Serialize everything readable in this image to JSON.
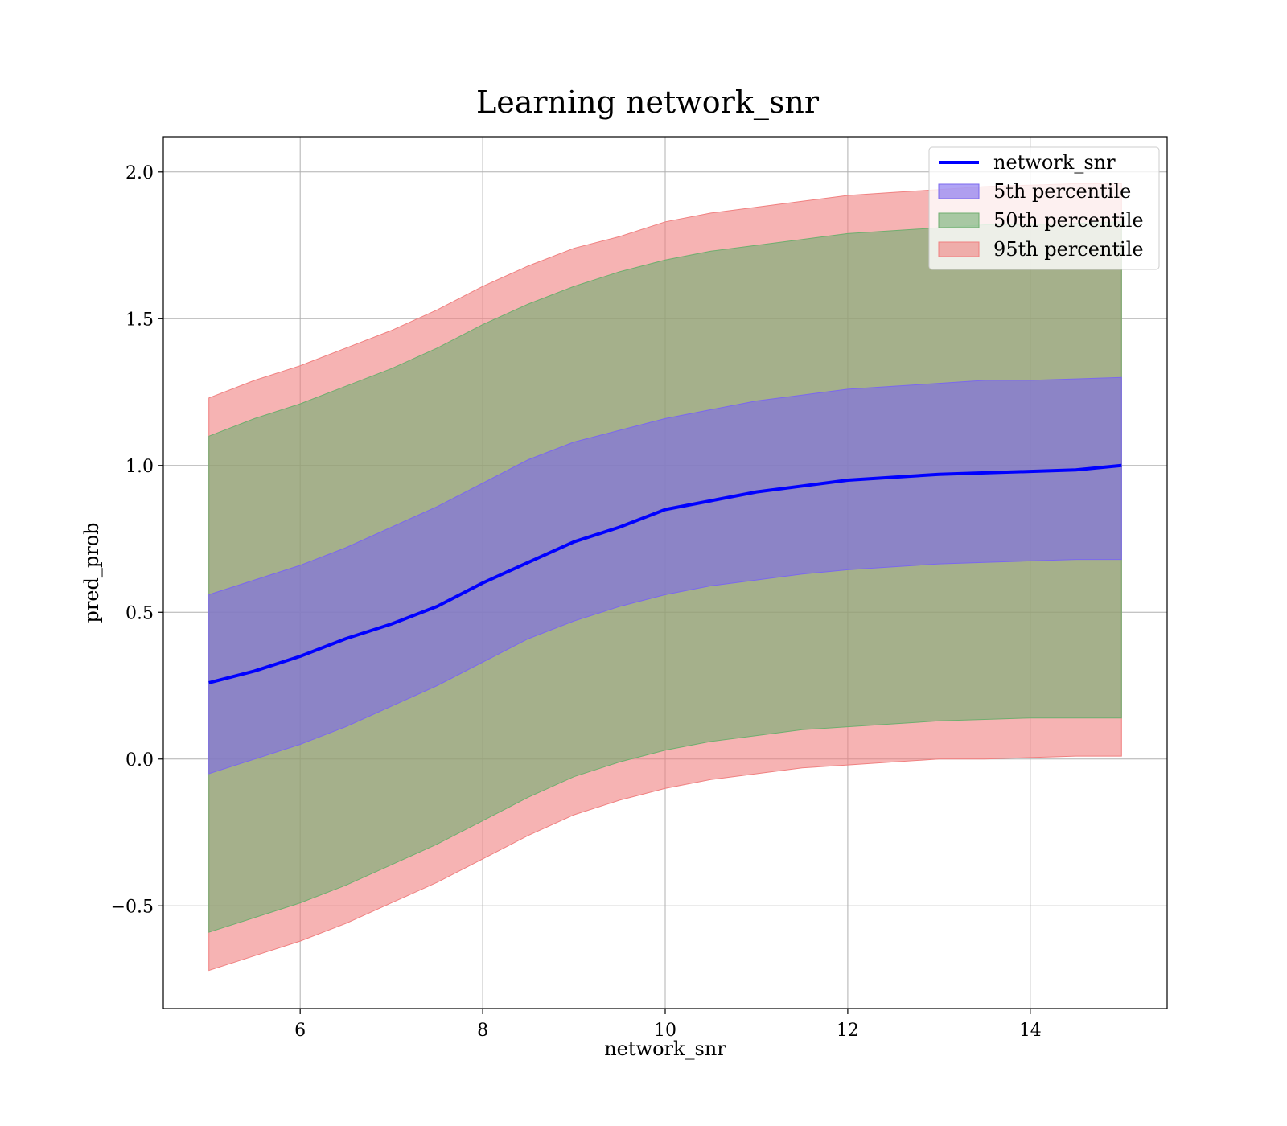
{
  "chart_data": {
    "type": "area",
    "title": "Learning network_snr",
    "xlabel": "network_snr",
    "ylabel": "pred_prob",
    "xlim": [
      4.5,
      15.5
    ],
    "ylim": [
      -0.85,
      2.12
    ],
    "xticks": [
      6,
      8,
      10,
      12,
      14
    ],
    "xtick_labels": [
      "6",
      "8",
      "10",
      "12",
      "14"
    ],
    "yticks": [
      -0.5,
      0.0,
      0.5,
      1.0,
      1.5,
      2.0
    ],
    "ytick_labels": [
      "−0.5",
      "0.0",
      "0.5",
      "1.0",
      "1.5",
      "2.0"
    ],
    "grid": true,
    "legend_position": "top-right",
    "x": [
      5,
      5.5,
      6,
      6.5,
      7,
      7.5,
      8,
      8.5,
      9,
      9.5,
      10,
      10.5,
      11,
      11.5,
      12,
      12.5,
      13,
      13.5,
      14,
      14.5,
      15
    ],
    "line": {
      "name": "network_snr",
      "color": "#0000ff",
      "values": [
        0.26,
        0.3,
        0.35,
        0.41,
        0.46,
        0.52,
        0.6,
        0.67,
        0.74,
        0.79,
        0.85,
        0.88,
        0.91,
        0.93,
        0.95,
        0.96,
        0.97,
        0.975,
        0.98,
        0.985,
        1.0
      ]
    },
    "bands": [
      {
        "name": "95th percentile",
        "color": "#f08080",
        "upper": [
          1.23,
          1.29,
          1.34,
          1.4,
          1.46,
          1.53,
          1.61,
          1.68,
          1.74,
          1.78,
          1.83,
          1.86,
          1.88,
          1.9,
          1.92,
          1.93,
          1.94,
          1.95,
          1.955,
          1.96,
          1.96
        ],
        "lower": [
          -0.72,
          -0.67,
          -0.62,
          -0.56,
          -0.49,
          -0.42,
          -0.34,
          -0.26,
          -0.19,
          -0.14,
          -0.1,
          -0.07,
          -0.05,
          -0.03,
          -0.02,
          -0.01,
          0.0,
          0.0,
          0.005,
          0.01,
          0.01
        ]
      },
      {
        "name": "50th percentile",
        "color": "#6fae6f",
        "upper": [
          1.1,
          1.16,
          1.21,
          1.27,
          1.33,
          1.4,
          1.48,
          1.55,
          1.61,
          1.66,
          1.7,
          1.73,
          1.75,
          1.77,
          1.79,
          1.8,
          1.81,
          1.82,
          1.82,
          1.825,
          1.83
        ],
        "lower": [
          -0.59,
          -0.54,
          -0.49,
          -0.43,
          -0.36,
          -0.29,
          -0.21,
          -0.13,
          -0.06,
          -0.01,
          0.03,
          0.06,
          0.08,
          0.1,
          0.11,
          0.12,
          0.13,
          0.135,
          0.14,
          0.14,
          0.14
        ]
      },
      {
        "name": "5th percentile",
        "color": "#7b68ee",
        "upper": [
          0.56,
          0.61,
          0.66,
          0.72,
          0.79,
          0.86,
          0.94,
          1.02,
          1.08,
          1.12,
          1.16,
          1.19,
          1.22,
          1.24,
          1.26,
          1.27,
          1.28,
          1.29,
          1.29,
          1.295,
          1.3
        ],
        "lower": [
          -0.05,
          0.0,
          0.05,
          0.11,
          0.18,
          0.25,
          0.33,
          0.41,
          0.47,
          0.52,
          0.56,
          0.59,
          0.61,
          0.63,
          0.645,
          0.655,
          0.665,
          0.67,
          0.675,
          0.68,
          0.68
        ]
      }
    ],
    "legend": [
      {
        "label": "network_snr",
        "kind": "line",
        "color": "#0000ff"
      },
      {
        "label": "5th percentile",
        "kind": "patch",
        "color": "#7b68ee"
      },
      {
        "label": "50th percentile",
        "kind": "patch",
        "color": "#6fae6f"
      },
      {
        "label": "95th percentile",
        "kind": "patch",
        "color": "#f08080"
      }
    ]
  }
}
